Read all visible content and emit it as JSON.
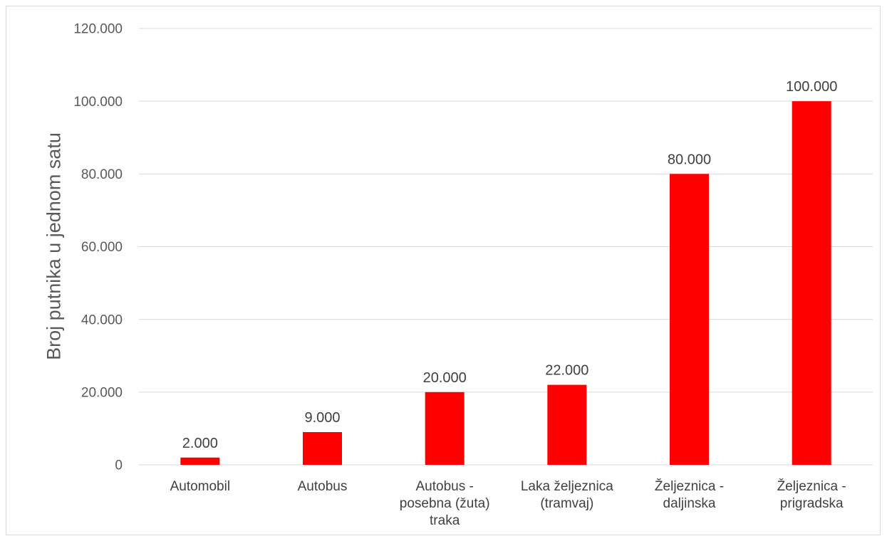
{
  "chart_data": {
    "type": "bar",
    "categories": [
      [
        "Automobil"
      ],
      [
        "Autobus"
      ],
      [
        "Autobus -",
        "posebna (žuta)",
        "traka"
      ],
      [
        "Laka željeznica",
        "(tramvaj)"
      ],
      [
        "Željeznica -",
        "daljinska"
      ],
      [
        "Željeznica -",
        "prigradska"
      ]
    ],
    "values": [
      2000,
      9000,
      20000,
      22000,
      80000,
      100000
    ],
    "data_labels": [
      "2.000",
      "9.000",
      "20.000",
      "22.000",
      "80.000",
      "100.000"
    ],
    "ylabel": "Broj putnika u jednom satu",
    "ylim": [
      0,
      120000
    ],
    "yticks": [
      0,
      20000,
      40000,
      60000,
      80000,
      100000,
      120000
    ],
    "ytick_labels": [
      "0",
      "20.000",
      "40.000",
      "60.000",
      "80.000",
      "100.000",
      "120.000"
    ],
    "grid": true,
    "bar_color": "#ff0000"
  }
}
